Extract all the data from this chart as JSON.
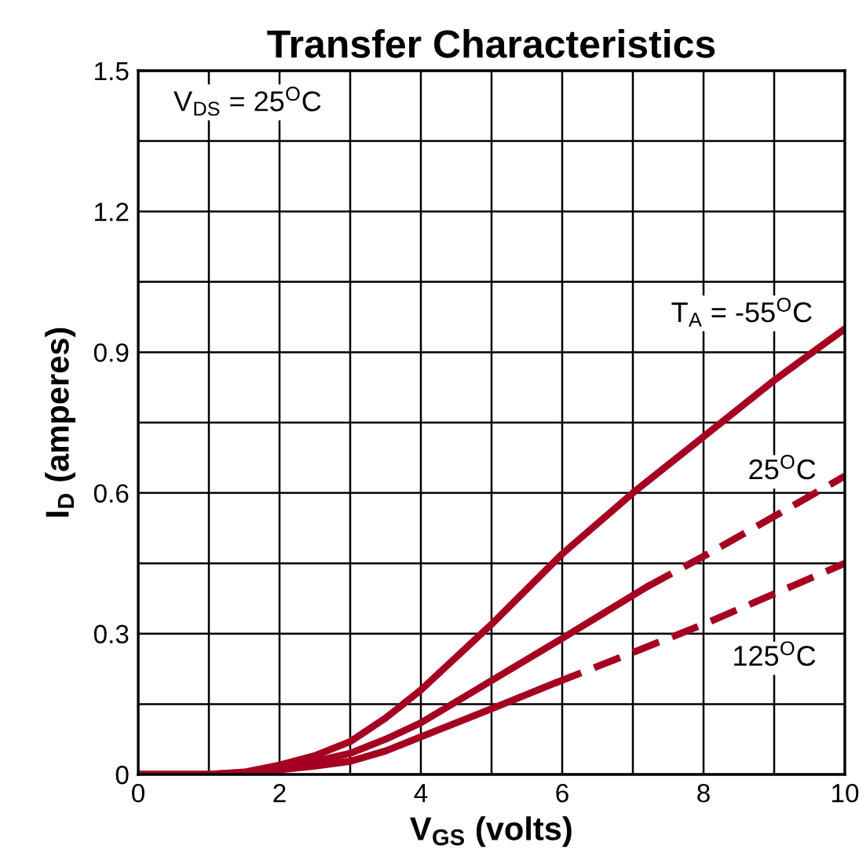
{
  "chart_data": {
    "type": "line",
    "title": "Transfer Characteristics",
    "xlabel": "V$_{GS}$ (volts)",
    "ylabel": "I$_{D}$ (amperes)",
    "xlim": [
      0,
      10
    ],
    "ylim": [
      0,
      1.5
    ],
    "xticks": [
      0,
      {
        "value": 1,
        "label": null
      },
      2,
      {
        "value": 3,
        "label": null
      },
      4,
      {
        "value": 5,
        "label": null
      },
      6,
      {
        "value": 7,
        "label": null
      },
      8,
      {
        "value": 9,
        "label": null
      },
      10
    ],
    "yticks": [
      0,
      {
        "value": 0.15,
        "label": null
      },
      0.3,
      {
        "value": 0.45,
        "label": null
      },
      0.6,
      {
        "value": 0.75,
        "label": null
      },
      0.9,
      {
        "value": 1.05,
        "label": null
      },
      1.2,
      {
        "value": 1.35,
        "label": null
      },
      1.5
    ],
    "grid": true,
    "legend": false,
    "marker": "none",
    "series": [
      {
        "color": "#a50021",
        "line_style": "solid",
        "x": [
          0,
          1,
          1.5,
          2,
          2.5,
          3,
          3.5,
          4,
          5,
          6,
          7,
          8,
          9,
          10
        ],
        "values": [
          0,
          0,
          0.005,
          0.02,
          0.04,
          0.07,
          0.12,
          0.18,
          0.32,
          0.47,
          0.6,
          0.72,
          0.84,
          0.95
        ]
      },
      {
        "color": "#a50021",
        "line_style": "solid",
        "x": [
          0,
          1,
          1.5,
          2,
          2.5,
          3,
          3.5,
          4,
          5,
          6,
          7.2
        ],
        "values": [
          0,
          0,
          0.004,
          0.015,
          0.028,
          0.045,
          0.075,
          0.11,
          0.2,
          0.29,
          0.4
        ]
      },
      {
        "color": "#a50021",
        "line_style": "dashed",
        "x": [
          7.2,
          8,
          9,
          10
        ],
        "values": [
          0.4,
          0.465,
          0.55,
          0.636
        ]
      },
      {
        "color": "#a50021",
        "line_style": "solid",
        "x": [
          0,
          1,
          1.5,
          2,
          2.5,
          3,
          3.5,
          4,
          5,
          5.9
        ],
        "values": [
          0,
          0,
          0.003,
          0.01,
          0.018,
          0.028,
          0.05,
          0.08,
          0.14,
          0.195
        ]
      },
      {
        "color": "#a50021",
        "line_style": "dashed",
        "x": [
          5.9,
          7,
          8,
          9,
          10
        ],
        "values": [
          0.195,
          0.26,
          0.32,
          0.385,
          0.45
        ]
      }
    ],
    "annotations": [
      "V$_{DS}$ = 25$^{O}$C",
      "T$_{A}$ = -55$^{O}$C",
      "25$^{O}$C",
      "125$^{O}$C"
    ]
  }
}
